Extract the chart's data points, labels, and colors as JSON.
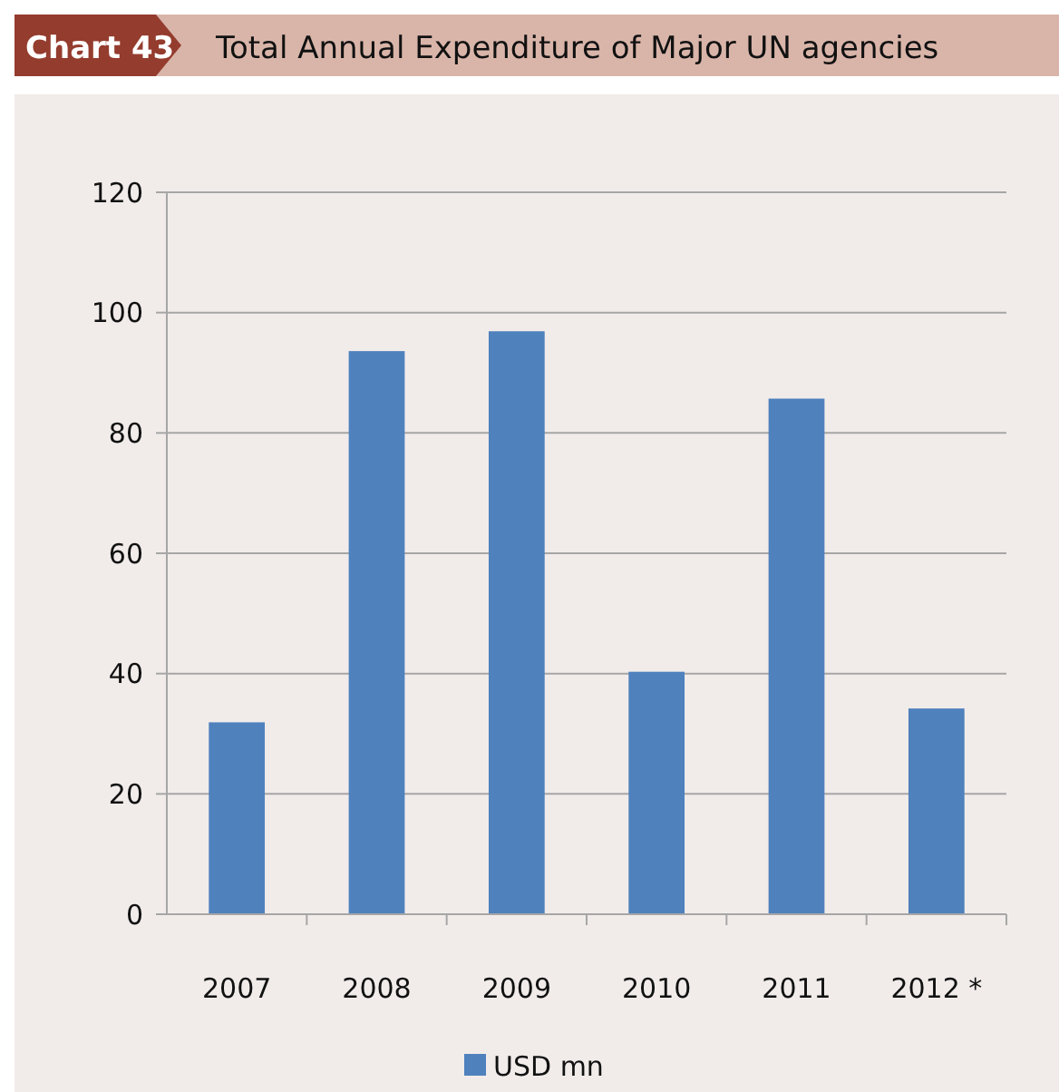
{
  "chart_data": {
    "type": "bar",
    "title": "Total Annual Expenditure of Major UN agencies",
    "annotations": [
      "Chart 43"
    ],
    "categories": [
      "2007",
      "2008",
      "2009",
      "2010",
      "2011",
      "2012 *"
    ],
    "series": [
      {
        "name": "USD mn",
        "color": "#4f81bd",
        "values": [
          31.9,
          93.6,
          96.9,
          40.3,
          85.7,
          34.2
        ]
      }
    ],
    "ylim": [
      0,
      120
    ],
    "yticks": [
      0,
      20,
      40,
      60,
      80,
      100,
      120
    ],
    "grid": "y",
    "legend": "bottom"
  }
}
